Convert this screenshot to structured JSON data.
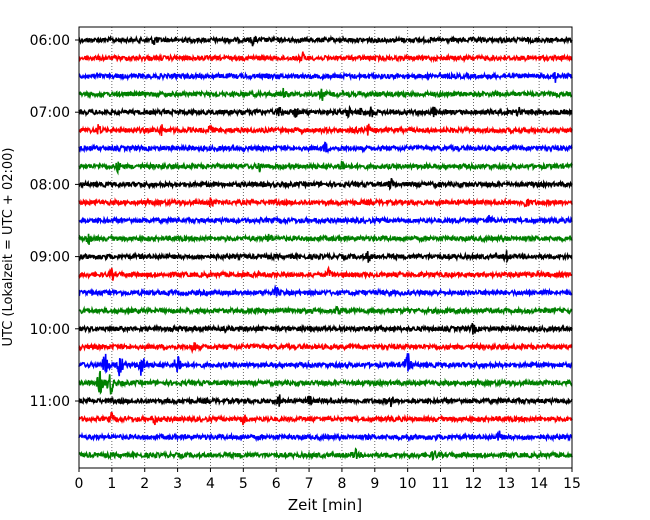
{
  "chart_data": {
    "type": "line",
    "title": "",
    "xlabel": "Zeit  [min]",
    "ylabel": "UTC (Lokalzeit = UTC + 02:00)",
    "xlim": [
      0,
      15
    ],
    "xticks": [
      0,
      1,
      2,
      3,
      4,
      5,
      6,
      7,
      8,
      9,
      10,
      11,
      12,
      13,
      14,
      15
    ],
    "xtick_labels": [
      "0",
      "1",
      "2",
      "3",
      "4",
      "5",
      "6",
      "7",
      "8",
      "9",
      "10",
      "11",
      "12",
      "13",
      "14",
      "15"
    ],
    "y_tick_labels": [
      "06:00",
      "07:00",
      "08:00",
      "09:00",
      "10:00",
      "11:00"
    ],
    "y_tick_trace_index": [
      0,
      4,
      8,
      12,
      16,
      20
    ],
    "grid": "vertical dotted lines at each minute",
    "trace_interval_minutes": 15,
    "trace_colors": [
      "#000000",
      "#ff0000",
      "#0000ff",
      "#008000"
    ],
    "traces": [
      {
        "start": "06:00",
        "color": "#000000",
        "events_min": [
          2.3,
          5.3
        ]
      },
      {
        "start": "06:15",
        "color": "#ff0000",
        "events_min": [
          6.8
        ]
      },
      {
        "start": "06:30",
        "color": "#0000ff",
        "events_min": [
          14.5
        ]
      },
      {
        "start": "06:45",
        "color": "#008000",
        "events_min": [
          6.2,
          7.4
        ]
      },
      {
        "start": "07:00",
        "color": "#000000",
        "events_min": [
          5.5,
          6.1,
          6.6,
          8.2,
          8.6,
          8.9,
          10.8,
          13.4
        ]
      },
      {
        "start": "07:15",
        "color": "#ff0000",
        "events_min": [
          0.6,
          2.5,
          4.0,
          8.5,
          8.8
        ]
      },
      {
        "start": "07:30",
        "color": "#0000ff",
        "events_min": [
          7.5
        ]
      },
      {
        "start": "07:45",
        "color": "#008000",
        "events_min": [
          1.2,
          5.5,
          8.0
        ]
      },
      {
        "start": "08:00",
        "color": "#000000",
        "events_min": [
          9.5
        ]
      },
      {
        "start": "08:15",
        "color": "#ff0000",
        "events_min": [
          4.0,
          13.6
        ]
      },
      {
        "start": "08:30",
        "color": "#0000ff",
        "events_min": [
          12.5
        ]
      },
      {
        "start": "08:45",
        "color": "#008000",
        "events_min": [
          0.3,
          5.8
        ]
      },
      {
        "start": "09:00",
        "color": "#000000",
        "events_min": [
          8.8,
          13.0
        ]
      },
      {
        "start": "09:15",
        "color": "#ff0000",
        "events_min": [
          1.0,
          7.6
        ]
      },
      {
        "start": "09:30",
        "color": "#0000ff",
        "events_min": [
          6.0
        ]
      },
      {
        "start": "09:45",
        "color": "#008000",
        "events_min": [
          7.9
        ]
      },
      {
        "start": "10:00",
        "color": "#000000",
        "events_min": [
          12.0
        ]
      },
      {
        "start": "10:15",
        "color": "#ff0000",
        "events_min": [
          3.5
        ]
      },
      {
        "start": "10:30",
        "color": "#0000ff",
        "events_min": [
          0.8,
          1.25,
          1.9,
          3.0,
          10.0
        ]
      },
      {
        "start": "10:45",
        "color": "#008000",
        "events_min": [
          0.65,
          0.95
        ]
      },
      {
        "start": "11:00",
        "color": "#000000",
        "events_min": [
          6.1,
          7.0,
          9.5
        ]
      },
      {
        "start": "11:15",
        "color": "#ff0000",
        "events_min": [
          1.0,
          2.3,
          5.0
        ]
      },
      {
        "start": "11:30",
        "color": "#0000ff",
        "events_min": [
          12.8
        ]
      },
      {
        "start": "11:45",
        "color": "#008000",
        "events_min": [
          8.4,
          10.8
        ]
      }
    ]
  }
}
